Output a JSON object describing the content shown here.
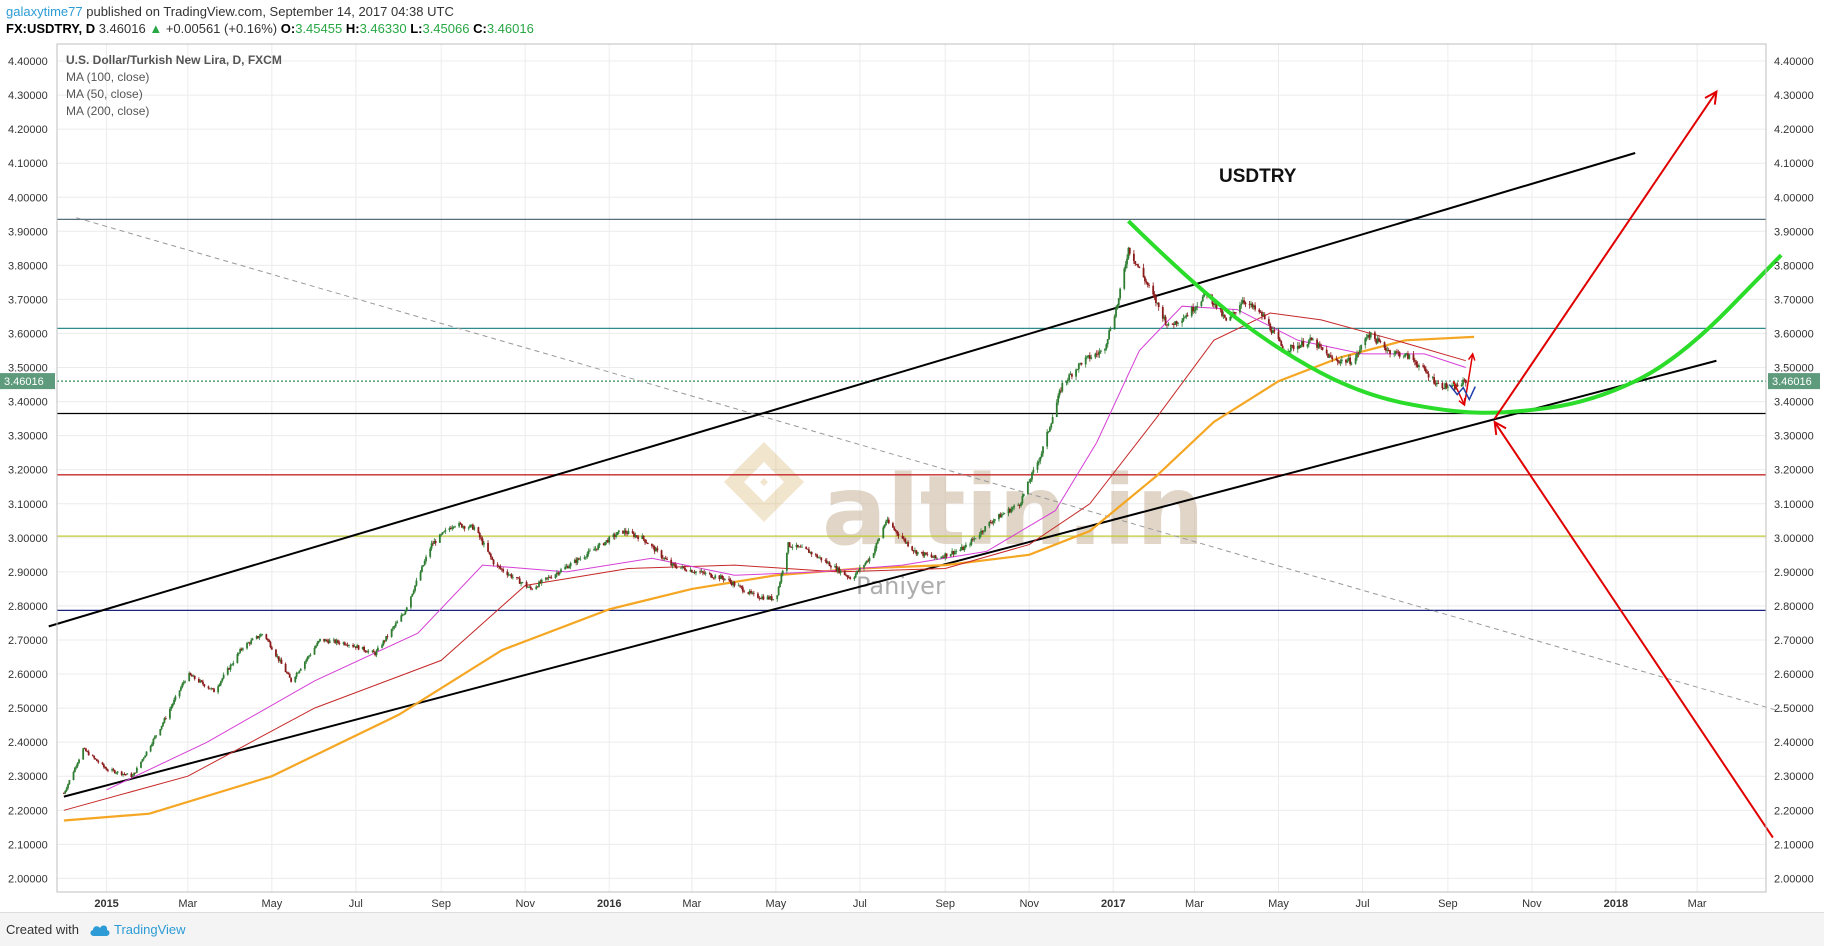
{
  "header": {
    "author": "galaxytime77",
    "published": "published on TradingView.com, September 14, 2017 04:38 UTC",
    "symbol": "FX:USDTRY, D",
    "last": "3.46016",
    "change": "+0.00561 (+0.16%)",
    "o_label": "O:",
    "o": "3.45455",
    "h_label": "H:",
    "h": "3.46330",
    "l_label": "L:",
    "l": "3.45066",
    "c_label": "C:",
    "c": "3.46016"
  },
  "footer": {
    "created_with": "Created with",
    "brand": "TradingView"
  },
  "chart_data": {
    "type": "candlestick",
    "title": "U.S. Dollar/Turkish New Lira, D, FXCM",
    "annotation": "USDTRY",
    "watermark": "altin.in",
    "watermark_sub": "Paniyer",
    "legend": [
      "MA (100, close)",
      "MA (50, close)",
      "MA (200, close)"
    ],
    "price_tag": "3.46016",
    "y_ticks": [
      "4.40000",
      "4.30000",
      "4.20000",
      "4.10000",
      "4.00000",
      "3.90000",
      "3.80000",
      "3.70000",
      "3.60000",
      "3.50000",
      "3.40000",
      "3.30000",
      "3.20000",
      "3.10000",
      "3.00000",
      "2.90000",
      "2.80000",
      "2.70000",
      "2.60000",
      "2.50000",
      "2.40000",
      "2.30000",
      "2.20000",
      "2.10000",
      "2.00000"
    ],
    "ylim": [
      1.96,
      4.45
    ],
    "x_ticks": [
      {
        "label": "2015",
        "t": "2015-01",
        "bold": true
      },
      {
        "label": "Mar",
        "t": "2015-03"
      },
      {
        "label": "May",
        "t": "2015-05"
      },
      {
        "label": "Jul",
        "t": "2015-07"
      },
      {
        "label": "Sep",
        "t": "2015-09"
      },
      {
        "label": "Nov",
        "t": "2015-11"
      },
      {
        "label": "2016",
        "t": "2016-01",
        "bold": true
      },
      {
        "label": "Mar",
        "t": "2016-03"
      },
      {
        "label": "May",
        "t": "2016-05"
      },
      {
        "label": "Jul",
        "t": "2016-07"
      },
      {
        "label": "Sep",
        "t": "2016-09"
      },
      {
        "label": "Nov",
        "t": "2016-11"
      },
      {
        "label": "2017",
        "t": "2017-01",
        "bold": true
      },
      {
        "label": "Mar",
        "t": "2017-03"
      },
      {
        "label": "May",
        "t": "2017-05"
      },
      {
        "label": "Jul",
        "t": "2017-07"
      },
      {
        "label": "Sep",
        "t": "2017-09"
      },
      {
        "label": "Nov",
        "t": "2017-11"
      },
      {
        "label": "2018",
        "t": "2018-01",
        "bold": true
      },
      {
        "label": "Mar",
        "t": "2018-03"
      }
    ],
    "price_path": [
      [
        "2014-12-01",
        2.25
      ],
      [
        "2014-12-15",
        2.38
      ],
      [
        "2015-01-01",
        2.32
      ],
      [
        "2015-01-20",
        2.3
      ],
      [
        "2015-02-10",
        2.45
      ],
      [
        "2015-03-01",
        2.6
      ],
      [
        "2015-03-20",
        2.55
      ],
      [
        "2015-04-10",
        2.68
      ],
      [
        "2015-04-25",
        2.72
      ],
      [
        "2015-05-15",
        2.58
      ],
      [
        "2015-06-05",
        2.7
      ],
      [
        "2015-06-25",
        2.69
      ],
      [
        "2015-07-15",
        2.66
      ],
      [
        "2015-08-05",
        2.78
      ],
      [
        "2015-08-25",
        2.98
      ],
      [
        "2015-09-10",
        3.04
      ],
      [
        "2015-09-25",
        3.03
      ],
      [
        "2015-10-10",
        2.92
      ],
      [
        "2015-10-25",
        2.88
      ],
      [
        "2015-11-05",
        2.85
      ],
      [
        "2015-11-25",
        2.9
      ],
      [
        "2015-12-15",
        2.95
      ],
      [
        "2016-01-10",
        3.02
      ],
      [
        "2016-01-25",
        3.0
      ],
      [
        "2016-02-15",
        2.92
      ],
      [
        "2016-03-05",
        2.9
      ],
      [
        "2016-03-25",
        2.88
      ],
      [
        "2016-04-15",
        2.83
      ],
      [
        "2016-05-01",
        2.82
      ],
      [
        "2016-05-10",
        2.98
      ],
      [
        "2016-05-25",
        2.96
      ],
      [
        "2016-06-10",
        2.92
      ],
      [
        "2016-06-25",
        2.88
      ],
      [
        "2016-07-10",
        2.95
      ],
      [
        "2016-07-20",
        3.05
      ],
      [
        "2016-08-10",
        2.96
      ],
      [
        "2016-08-25",
        2.94
      ],
      [
        "2016-09-15",
        2.97
      ],
      [
        "2016-10-05",
        3.05
      ],
      [
        "2016-10-25",
        3.1
      ],
      [
        "2016-11-10",
        3.25
      ],
      [
        "2016-11-25",
        3.45
      ],
      [
        "2016-12-10",
        3.52
      ],
      [
        "2016-12-25",
        3.55
      ],
      [
        "2017-01-05",
        3.7
      ],
      [
        "2017-01-12",
        3.85
      ],
      [
        "2017-01-25",
        3.75
      ],
      [
        "2017-02-10",
        3.62
      ],
      [
        "2017-02-25",
        3.66
      ],
      [
        "2017-03-10",
        3.72
      ],
      [
        "2017-03-25",
        3.63
      ],
      [
        "2017-04-05",
        3.7
      ],
      [
        "2017-04-20",
        3.65
      ],
      [
        "2017-05-05",
        3.55
      ],
      [
        "2017-05-25",
        3.58
      ],
      [
        "2017-06-10",
        3.52
      ],
      [
        "2017-06-25",
        3.52
      ],
      [
        "2017-07-05",
        3.6
      ],
      [
        "2017-07-20",
        3.55
      ],
      [
        "2017-08-05",
        3.53
      ],
      [
        "2017-08-25",
        3.45
      ],
      [
        "2017-09-05",
        3.44
      ],
      [
        "2017-09-14",
        3.46
      ]
    ],
    "ma50": [
      [
        "2015-01-01",
        2.26
      ],
      [
        "2015-03-15",
        2.4
      ],
      [
        "2015-06-01",
        2.58
      ],
      [
        "2015-08-15",
        2.72
      ],
      [
        "2015-10-01",
        2.92
      ],
      [
        "2015-12-01",
        2.9
      ],
      [
        "2016-02-01",
        2.94
      ],
      [
        "2016-04-01",
        2.89
      ],
      [
        "2016-06-01",
        2.9
      ],
      [
        "2016-08-01",
        2.92
      ],
      [
        "2016-10-01",
        2.96
      ],
      [
        "2016-11-20",
        3.08
      ],
      [
        "2016-12-20",
        3.28
      ],
      [
        "2017-01-20",
        3.55
      ],
      [
        "2017-02-20",
        3.68
      ],
      [
        "2017-04-01",
        3.67
      ],
      [
        "2017-05-15",
        3.58
      ],
      [
        "2017-07-01",
        3.54
      ],
      [
        "2017-08-15",
        3.54
      ],
      [
        "2017-09-14",
        3.5
      ]
    ],
    "ma100": [
      [
        "2014-12-01",
        2.2
      ],
      [
        "2015-03-01",
        2.3
      ],
      [
        "2015-06-01",
        2.5
      ],
      [
        "2015-09-01",
        2.64
      ],
      [
        "2015-11-01",
        2.86
      ],
      [
        "2016-01-15",
        2.91
      ],
      [
        "2016-04-01",
        2.92
      ],
      [
        "2016-06-15",
        2.9
      ],
      [
        "2016-09-01",
        2.91
      ],
      [
        "2016-11-01",
        2.98
      ],
      [
        "2016-12-15",
        3.1
      ],
      [
        "2017-02-01",
        3.35
      ],
      [
        "2017-03-15",
        3.58
      ],
      [
        "2017-04-25",
        3.66
      ],
      [
        "2017-06-01",
        3.64
      ],
      [
        "2017-07-25",
        3.58
      ],
      [
        "2017-09-14",
        3.52
      ]
    ],
    "ma200": [
      [
        "2014-12-01",
        2.17
      ],
      [
        "2015-02-01",
        2.19
      ],
      [
        "2015-05-01",
        2.3
      ],
      [
        "2015-08-01",
        2.48
      ],
      [
        "2015-10-15",
        2.67
      ],
      [
        "2016-01-01",
        2.79
      ],
      [
        "2016-03-01",
        2.85
      ],
      [
        "2016-05-01",
        2.89
      ],
      [
        "2016-07-01",
        2.91
      ],
      [
        "2016-09-01",
        2.92
      ],
      [
        "2016-11-01",
        2.95
      ],
      [
        "2016-12-15",
        3.02
      ],
      [
        "2017-02-01",
        3.18
      ],
      [
        "2017-03-15",
        3.34
      ],
      [
        "2017-05-01",
        3.46
      ],
      [
        "2017-06-15",
        3.53
      ],
      [
        "2017-08-01",
        3.58
      ],
      [
        "2017-09-20",
        3.59
      ]
    ],
    "channel_upper": [
      [
        "2014-11-20",
        2.74
      ],
      [
        "2018-01-15",
        4.13
      ]
    ],
    "channel_lower": [
      [
        "2014-12-01",
        2.24
      ],
      [
        "2018-03-15",
        3.52
      ]
    ],
    "dashed_trend": [
      [
        "2014-12-10",
        3.94
      ],
      [
        "2018-05-01",
        2.49
      ]
    ],
    "hlines": [
      {
        "y": 3.935,
        "color": "#546e7a"
      },
      {
        "y": 3.615,
        "color": "#2e8b8b"
      },
      {
        "y": 3.46016,
        "color": "#2e8b57",
        "dotted": true
      },
      {
        "y": 3.365,
        "color": "#000000"
      },
      {
        "y": 3.185,
        "color": "#c62828"
      },
      {
        "y": 3.005,
        "color": "#c0ca33"
      },
      {
        "y": 2.787,
        "color": "#1a237e"
      }
    ],
    "green_arc": [
      [
        "2017-01-12",
        3.93
      ],
      [
        "2017-03-01",
        3.74
      ],
      [
        "2017-05-01",
        3.55
      ],
      [
        "2017-07-01",
        3.42
      ],
      [
        "2017-09-01",
        3.37
      ],
      [
        "2017-10-15",
        3.365
      ],
      [
        "2017-12-15",
        3.4
      ],
      [
        "2018-02-15",
        3.52
      ],
      [
        "2018-05-01",
        3.83
      ]
    ],
    "arrows": [
      {
        "from": [
          "2017-10-05",
          3.35
        ],
        "to": [
          "2018-03-15",
          4.31
        ]
      },
      {
        "from": [
          "2018-04-25",
          2.12
        ],
        "to": [
          "2017-10-05",
          3.34
        ]
      }
    ],
    "small_arrows": [
      {
        "from": [
          "2017-09-05",
          3.46
        ],
        "to": [
          "2017-09-13",
          3.39
        ]
      },
      {
        "from": [
          "2017-09-13",
          3.39
        ],
        "to": [
          "2017-09-19",
          3.54
        ]
      }
    ],
    "colors": {
      "up": "#2e7d32",
      "down": "#8b1a1a",
      "ma50": "#d63fd6",
      "ma100": "#c62828",
      "ma200": "#f5a623",
      "arc": "#2bdc2b",
      "arrow": "#e00000"
    }
  }
}
